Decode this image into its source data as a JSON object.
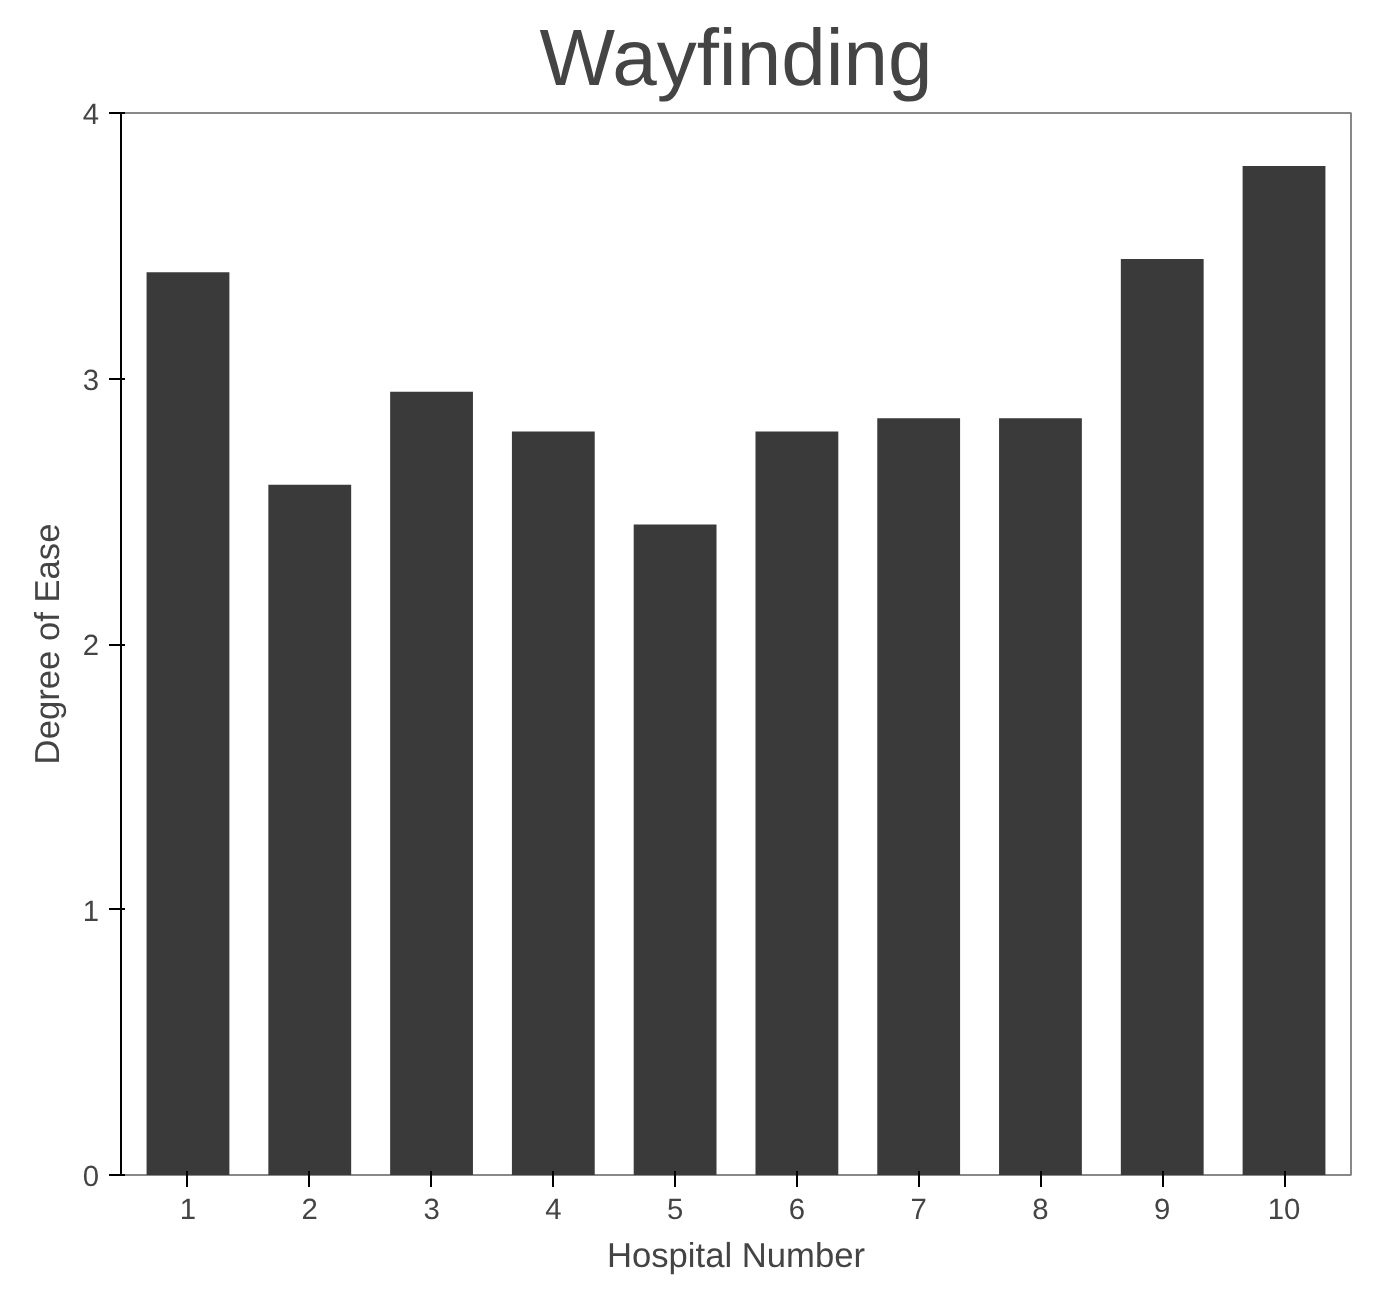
{
  "chart_data": {
    "type": "bar",
    "title": "Wayfinding",
    "xlabel": "Hospital Number",
    "ylabel": "Degree of Ease",
    "categories": [
      "1",
      "2",
      "3",
      "4",
      "5",
      "6",
      "7",
      "8",
      "9",
      "10"
    ],
    "values": [
      3.4,
      2.6,
      2.95,
      2.8,
      2.45,
      2.8,
      2.85,
      2.85,
      3.45,
      3.8
    ],
    "color": "#3a3a3a",
    "ylim": [
      0,
      4
    ],
    "yticks": [
      0,
      1,
      2,
      3,
      4
    ],
    "grid": false
  }
}
